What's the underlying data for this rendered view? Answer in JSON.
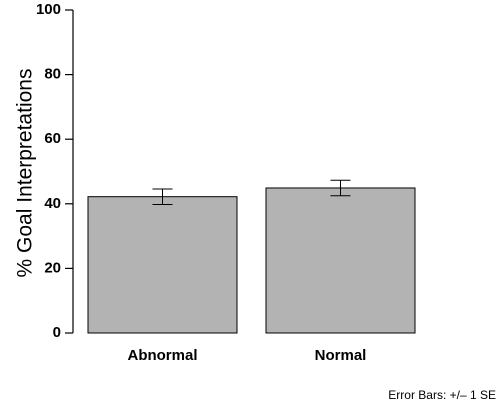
{
  "chart_data": {
    "type": "bar",
    "categories": [
      "Abnormal",
      "Normal"
    ],
    "values": [
      42.2,
      44.9
    ],
    "error_se": [
      2.4,
      2.4
    ],
    "ylabel": "% Goal Interpretations",
    "xlabel": "",
    "ylim": [
      0,
      100
    ],
    "yticks": [
      "0",
      "20",
      "40",
      "60",
      "80",
      "100"
    ],
    "grid": false,
    "bar_color": "#b3b3b3",
    "note": "Error Bars: +/– 1 SE"
  }
}
